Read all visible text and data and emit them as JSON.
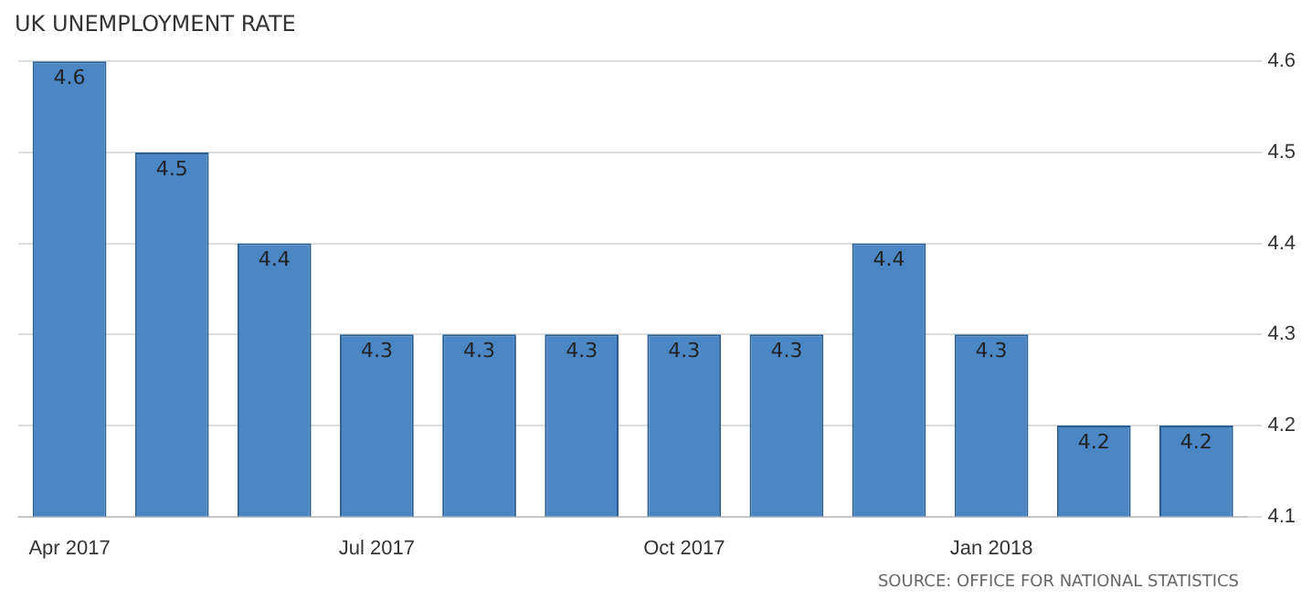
{
  "chart_data": {
    "type": "bar",
    "title": "UK UNEMPLOYMENT RATE",
    "categories": [
      "Apr 2017",
      null,
      null,
      "Jul 2017",
      null,
      null,
      "Oct 2017",
      null,
      null,
      "Jan 2018",
      null,
      null
    ],
    "values": [
      4.6,
      4.5,
      4.4,
      4.3,
      4.3,
      4.3,
      4.3,
      4.3,
      4.4,
      4.3,
      4.2,
      4.2
    ],
    "color": "#4a87c4",
    "ylim": [
      4.1,
      4.6
    ],
    "yticks": [
      4.1,
      4.2,
      4.3,
      4.4,
      4.5,
      4.6
    ],
    "grid": "y",
    "data_labels": true,
    "legend": false,
    "annotations": [
      "SOURCE: OFFICE FOR NATIONAL STATISTICS"
    ]
  }
}
